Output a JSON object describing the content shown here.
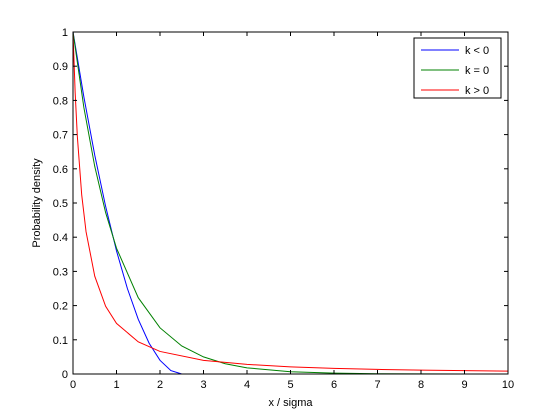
{
  "chart_data": {
    "type": "line",
    "xlabel": "x / sigma",
    "ylabel": "Probability density",
    "xlim": [
      0,
      10
    ],
    "ylim": [
      0,
      1
    ],
    "xticks": [
      "0",
      "1",
      "2",
      "3",
      "4",
      "5",
      "6",
      "7",
      "8",
      "9",
      "10"
    ],
    "yticks": [
      "0",
      "0.1",
      "0.2",
      "0.3",
      "0.4",
      "0.5",
      "0.6",
      "0.7",
      "0.8",
      "0.9",
      "1"
    ],
    "grid": false,
    "legend_position": "top-right",
    "series": [
      {
        "name": "k < 0",
        "color": "#0000ff",
        "x": [
          0,
          0.25,
          0.5,
          0.75,
          1.0,
          1.25,
          1.5,
          1.75,
          2.0,
          2.25,
          2.5
        ],
        "y": [
          1.0,
          0.81,
          0.64,
          0.49,
          0.36,
          0.25,
          0.16,
          0.09,
          0.04,
          0.01,
          0.0
        ]
      },
      {
        "name": "k = 0",
        "color": "#008000",
        "x": [
          0,
          0.25,
          0.5,
          0.75,
          1.0,
          1.5,
          2.0,
          2.5,
          3.0,
          3.5,
          4.0,
          5.0,
          6.0,
          7.0,
          8.0,
          9.0,
          10.0
        ],
        "y": [
          1.0,
          0.779,
          0.607,
          0.472,
          0.368,
          0.223,
          0.135,
          0.082,
          0.05,
          0.03,
          0.018,
          0.0067,
          0.0025,
          0.0009,
          0.0003,
          0.0001,
          5e-05
        ]
      },
      {
        "name": "k > 0",
        "color": "#ff0000",
        "x": [
          0,
          0.05,
          0.1,
          0.2,
          0.3,
          0.5,
          0.75,
          1.0,
          1.5,
          2.0,
          3.0,
          4.0,
          5.0,
          6.0,
          7.0,
          8.0,
          9.0,
          10.0
        ],
        "y": [
          1.0,
          0.822,
          0.694,
          0.524,
          0.416,
          0.286,
          0.198,
          0.148,
          0.094,
          0.066,
          0.04,
          0.028,
          0.021,
          0.0165,
          0.0135,
          0.0113,
          0.0097,
          0.0084
        ]
      }
    ]
  }
}
